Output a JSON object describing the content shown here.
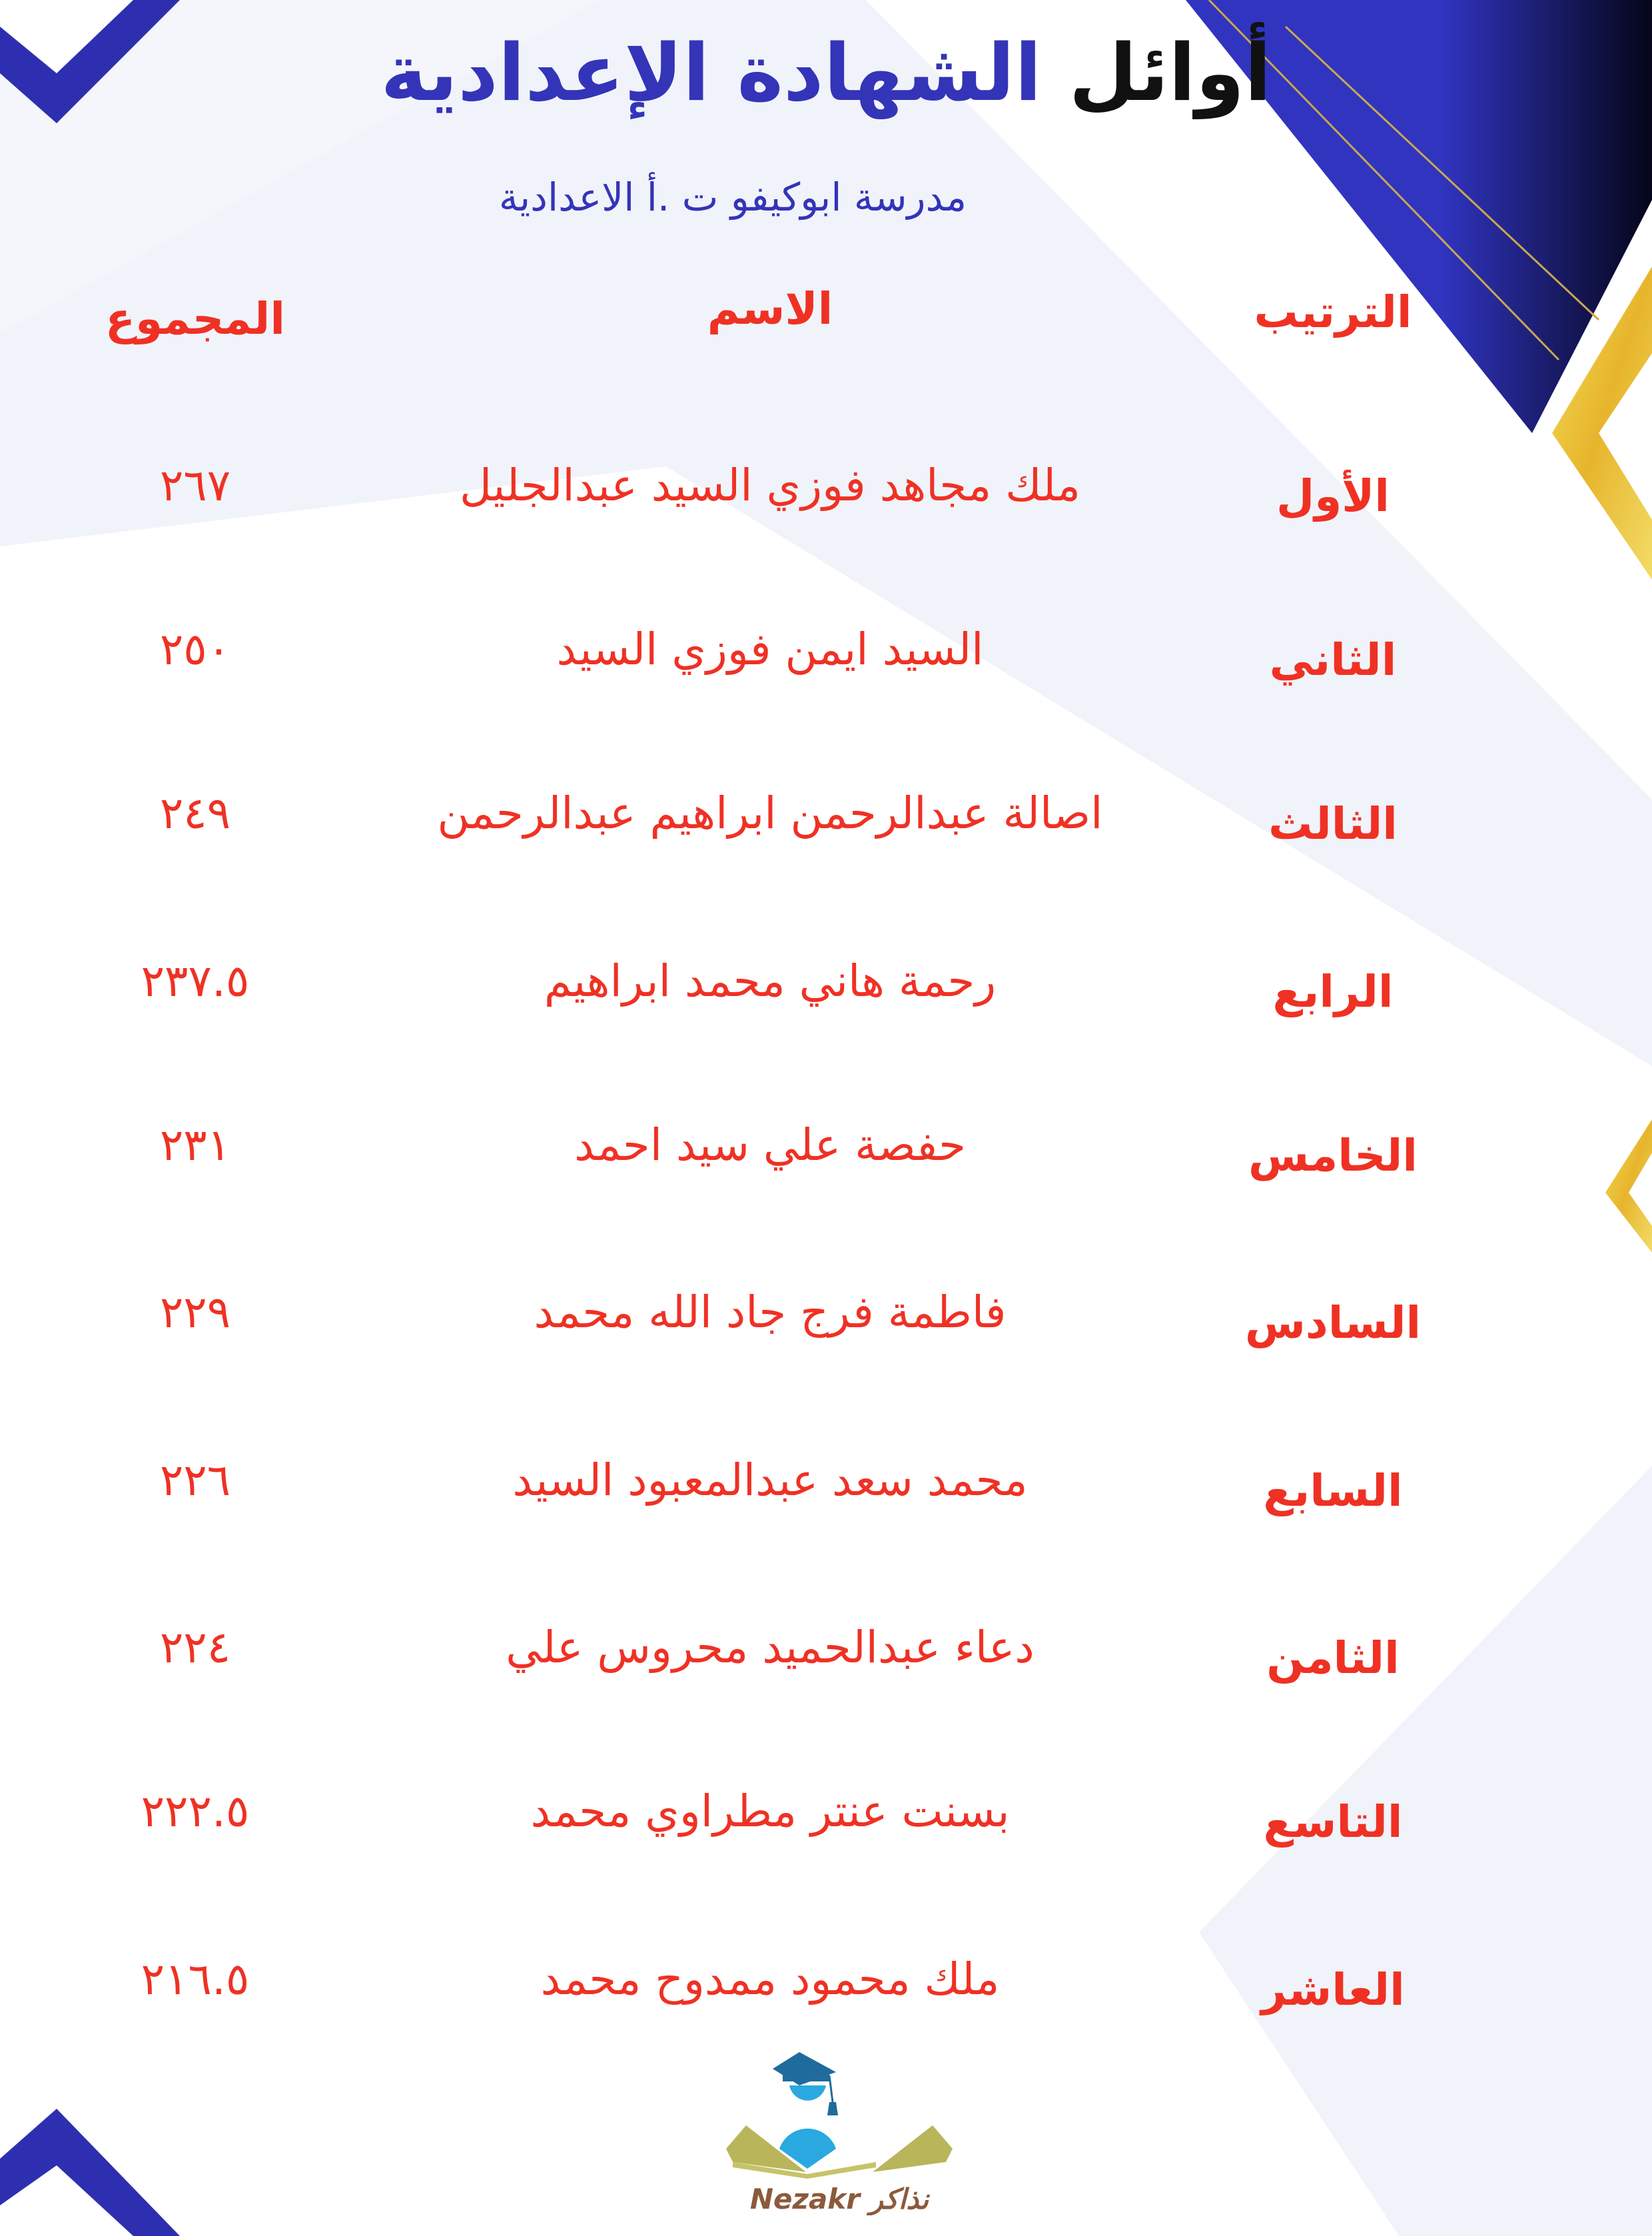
{
  "header": {
    "title_part1": "أوائل",
    "title_part2": "الشهادة الإعدادية",
    "subtitle": "مدرسة ابوكيفو ت .أ الاعدادية"
  },
  "table": {
    "columns": {
      "rank": "الترتيب",
      "name": "الاسم",
      "total": "المجموع"
    },
    "rows": [
      {
        "rank": "الأول",
        "name": "ملك مجاهد فوزي السيد عبدالجليل",
        "total": "٢٦٧"
      },
      {
        "rank": "الثاني",
        "name": "السيد ايمن فوزي السيد",
        "total": "٢٥٠"
      },
      {
        "rank": "الثالث",
        "name": "اصالة عبدالرحمن ابراهيم عبدالرحمن",
        "total": "٢٤٩"
      },
      {
        "rank": "الرابع",
        "name": "رحمة هاني محمد ابراهيم",
        "total": "٢٣٧.٥"
      },
      {
        "rank": "الخامس",
        "name": "حفصة علي سيد احمد",
        "total": "٢٣١"
      },
      {
        "rank": "السادس",
        "name": "فاطمة فرج جاد الله محمد",
        "total": "٢٢٩"
      },
      {
        "rank": "السابع",
        "name": "محمد سعد عبدالمعبود السيد",
        "total": "٢٢٦"
      },
      {
        "rank": "الثامن",
        "name": "دعاء عبدالحميد محروس علي",
        "total": "٢٢٤"
      },
      {
        "rank": "التاسع",
        "name": "بسنت عنتر مطراوي محمد",
        "total": "٢٢٢.٥"
      },
      {
        "rank": "العاشر",
        "name": "ملك محمود ممدوح محمد",
        "total": "٢١٦.٥"
      }
    ]
  },
  "logo": {
    "text_latin": "Nezakr",
    "text_arabic": "نذاكر",
    "icon": "graduate-book-logo"
  },
  "colors": {
    "title_blue": "#3434b8",
    "text_red": "#ef3124",
    "gold": "#e8c23a",
    "navy": "#2f33bd"
  }
}
